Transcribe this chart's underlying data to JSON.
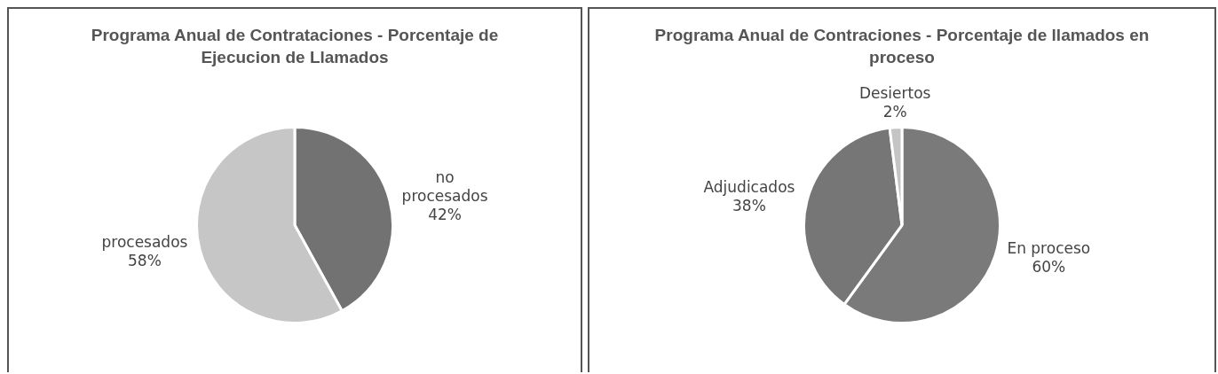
{
  "chart_data": [
    {
      "type": "pie",
      "title": "Programa Anual de Contrataciones - Porcentaje de Ejecucion de Llamados",
      "categories": [
        "no procesados",
        "procesados"
      ],
      "values": [
        42,
        58
      ],
      "colors": [
        "#727272",
        "#c6c6c6"
      ],
      "value_labels": [
        "42%",
        "58%"
      ]
    },
    {
      "type": "pie",
      "title": "Programa Anual de Contraciones - Porcentaje de llamados en proceso",
      "categories": [
        "En proceso",
        "Adjudicados",
        "Desiertos"
      ],
      "values": [
        60,
        38,
        2
      ],
      "colors": [
        "#7a7a7a",
        "#767676",
        "#c4c4c4"
      ],
      "value_labels": [
        "60%",
        "38%",
        "2%"
      ]
    }
  ]
}
